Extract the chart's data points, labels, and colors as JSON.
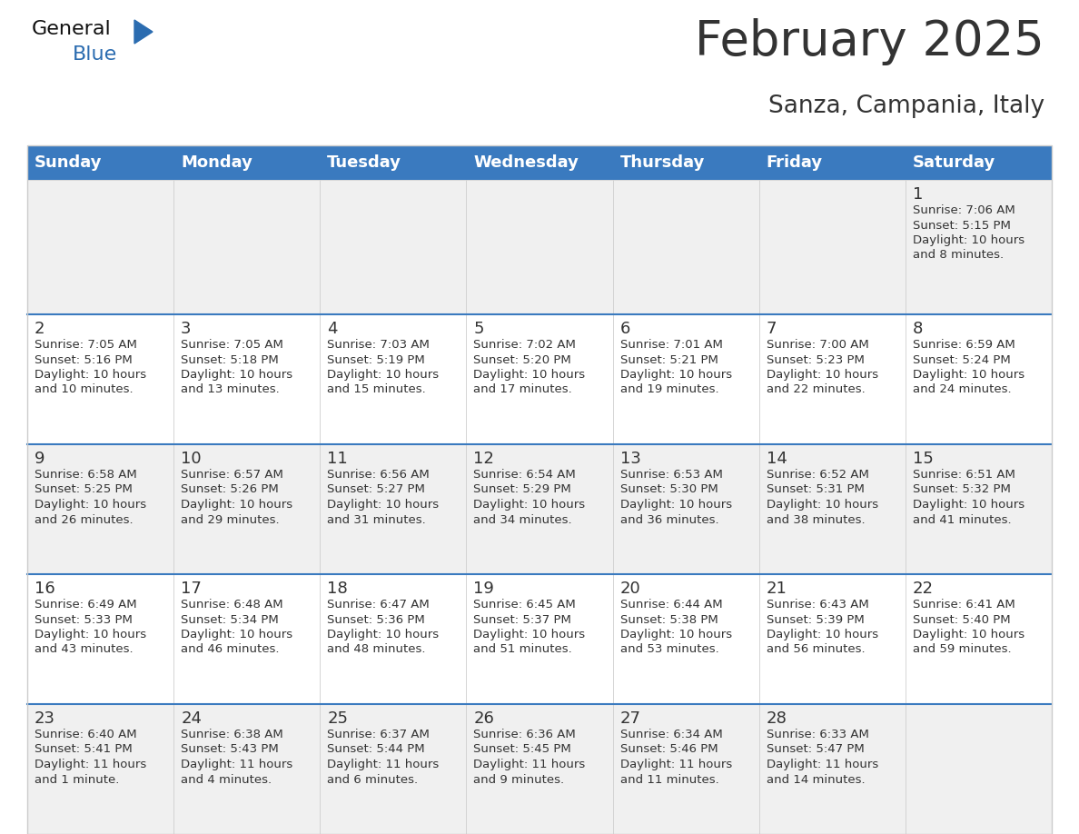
{
  "title": "February 2025",
  "subtitle": "Sanza, Campania, Italy",
  "header_color": "#3a7abf",
  "header_text_color": "#ffffff",
  "cell_bg_row0": "#f0f0f0",
  "cell_bg_odd": "#f0f0f0",
  "cell_bg_even": "#ffffff",
  "separator_color": "#3a7abf",
  "grid_line_color": "#cccccc",
  "day_headers": [
    "Sunday",
    "Monday",
    "Tuesday",
    "Wednesday",
    "Thursday",
    "Friday",
    "Saturday"
  ],
  "days": [
    {
      "day": 1,
      "col": 6,
      "row": 0,
      "sunrise": "7:06 AM",
      "sunset": "5:15 PM",
      "daylight": "10 hours",
      "daylight2": "and 8 minutes."
    },
    {
      "day": 2,
      "col": 0,
      "row": 1,
      "sunrise": "7:05 AM",
      "sunset": "5:16 PM",
      "daylight": "10 hours",
      "daylight2": "and 10 minutes."
    },
    {
      "day": 3,
      "col": 1,
      "row": 1,
      "sunrise": "7:05 AM",
      "sunset": "5:18 PM",
      "daylight": "10 hours",
      "daylight2": "and 13 minutes."
    },
    {
      "day": 4,
      "col": 2,
      "row": 1,
      "sunrise": "7:03 AM",
      "sunset": "5:19 PM",
      "daylight": "10 hours",
      "daylight2": "and 15 minutes."
    },
    {
      "day": 5,
      "col": 3,
      "row": 1,
      "sunrise": "7:02 AM",
      "sunset": "5:20 PM",
      "daylight": "10 hours",
      "daylight2": "and 17 minutes."
    },
    {
      "day": 6,
      "col": 4,
      "row": 1,
      "sunrise": "7:01 AM",
      "sunset": "5:21 PM",
      "daylight": "10 hours",
      "daylight2": "and 19 minutes."
    },
    {
      "day": 7,
      "col": 5,
      "row": 1,
      "sunrise": "7:00 AM",
      "sunset": "5:23 PM",
      "daylight": "10 hours",
      "daylight2": "and 22 minutes."
    },
    {
      "day": 8,
      "col": 6,
      "row": 1,
      "sunrise": "6:59 AM",
      "sunset": "5:24 PM",
      "daylight": "10 hours",
      "daylight2": "and 24 minutes."
    },
    {
      "day": 9,
      "col": 0,
      "row": 2,
      "sunrise": "6:58 AM",
      "sunset": "5:25 PM",
      "daylight": "10 hours",
      "daylight2": "and 26 minutes."
    },
    {
      "day": 10,
      "col": 1,
      "row": 2,
      "sunrise": "6:57 AM",
      "sunset": "5:26 PM",
      "daylight": "10 hours",
      "daylight2": "and 29 minutes."
    },
    {
      "day": 11,
      "col": 2,
      "row": 2,
      "sunrise": "6:56 AM",
      "sunset": "5:27 PM",
      "daylight": "10 hours",
      "daylight2": "and 31 minutes."
    },
    {
      "day": 12,
      "col": 3,
      "row": 2,
      "sunrise": "6:54 AM",
      "sunset": "5:29 PM",
      "daylight": "10 hours",
      "daylight2": "and 34 minutes."
    },
    {
      "day": 13,
      "col": 4,
      "row": 2,
      "sunrise": "6:53 AM",
      "sunset": "5:30 PM",
      "daylight": "10 hours",
      "daylight2": "and 36 minutes."
    },
    {
      "day": 14,
      "col": 5,
      "row": 2,
      "sunrise": "6:52 AM",
      "sunset": "5:31 PM",
      "daylight": "10 hours",
      "daylight2": "and 38 minutes."
    },
    {
      "day": 15,
      "col": 6,
      "row": 2,
      "sunrise": "6:51 AM",
      "sunset": "5:32 PM",
      "daylight": "10 hours",
      "daylight2": "and 41 minutes."
    },
    {
      "day": 16,
      "col": 0,
      "row": 3,
      "sunrise": "6:49 AM",
      "sunset": "5:33 PM",
      "daylight": "10 hours",
      "daylight2": "and 43 minutes."
    },
    {
      "day": 17,
      "col": 1,
      "row": 3,
      "sunrise": "6:48 AM",
      "sunset": "5:34 PM",
      "daylight": "10 hours",
      "daylight2": "and 46 minutes."
    },
    {
      "day": 18,
      "col": 2,
      "row": 3,
      "sunrise": "6:47 AM",
      "sunset": "5:36 PM",
      "daylight": "10 hours",
      "daylight2": "and 48 minutes."
    },
    {
      "day": 19,
      "col": 3,
      "row": 3,
      "sunrise": "6:45 AM",
      "sunset": "5:37 PM",
      "daylight": "10 hours",
      "daylight2": "and 51 minutes."
    },
    {
      "day": 20,
      "col": 4,
      "row": 3,
      "sunrise": "6:44 AM",
      "sunset": "5:38 PM",
      "daylight": "10 hours",
      "daylight2": "and 53 minutes."
    },
    {
      "day": 21,
      "col": 5,
      "row": 3,
      "sunrise": "6:43 AM",
      "sunset": "5:39 PM",
      "daylight": "10 hours",
      "daylight2": "and 56 minutes."
    },
    {
      "day": 22,
      "col": 6,
      "row": 3,
      "sunrise": "6:41 AM",
      "sunset": "5:40 PM",
      "daylight": "10 hours",
      "daylight2": "and 59 minutes."
    },
    {
      "day": 23,
      "col": 0,
      "row": 4,
      "sunrise": "6:40 AM",
      "sunset": "5:41 PM",
      "daylight": "11 hours",
      "daylight2": "and 1 minute."
    },
    {
      "day": 24,
      "col": 1,
      "row": 4,
      "sunrise": "6:38 AM",
      "sunset": "5:43 PM",
      "daylight": "11 hours",
      "daylight2": "and 4 minutes."
    },
    {
      "day": 25,
      "col": 2,
      "row": 4,
      "sunrise": "6:37 AM",
      "sunset": "5:44 PM",
      "daylight": "11 hours",
      "daylight2": "and 6 minutes."
    },
    {
      "day": 26,
      "col": 3,
      "row": 4,
      "sunrise": "6:36 AM",
      "sunset": "5:45 PM",
      "daylight": "11 hours",
      "daylight2": "and 9 minutes."
    },
    {
      "day": 27,
      "col": 4,
      "row": 4,
      "sunrise": "6:34 AM",
      "sunset": "5:46 PM",
      "daylight": "11 hours",
      "daylight2": "and 11 minutes."
    },
    {
      "day": 28,
      "col": 5,
      "row": 4,
      "sunrise": "6:33 AM",
      "sunset": "5:47 PM",
      "daylight": "11 hours",
      "daylight2": "and 14 minutes."
    }
  ],
  "num_rows": 5,
  "num_cols": 7,
  "title_fontsize": 38,
  "subtitle_fontsize": 19,
  "header_fontsize": 13,
  "day_num_fontsize": 13,
  "cell_text_fontsize": 9.5,
  "text_color": "#333333",
  "logo_general_color": "#111111",
  "logo_blue_color": "#2b6cb0"
}
